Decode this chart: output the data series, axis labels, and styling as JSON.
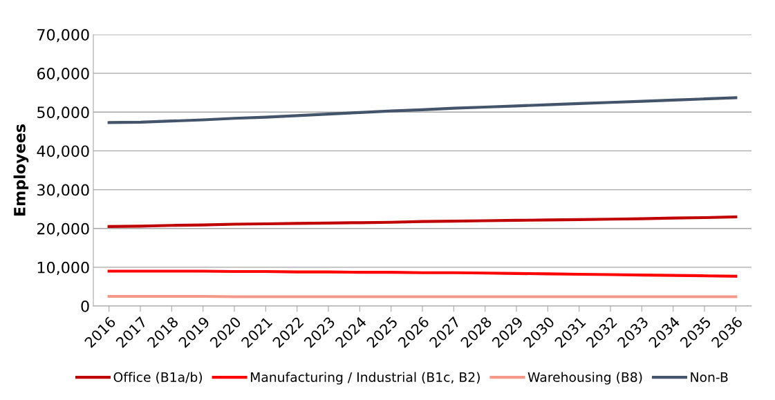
{
  "chart_data": {
    "type": "line",
    "ylabel": "Employees",
    "categories": [
      "2016",
      "2017",
      "2018",
      "2019",
      "2020",
      "2021",
      "2022",
      "2023",
      "2024",
      "2025",
      "2026",
      "2027",
      "2028",
      "2029",
      "2030",
      "2031",
      "2032",
      "2033",
      "2034",
      "2035",
      "2036"
    ],
    "series": [
      {
        "name": "Office (B1a/b)",
        "color": "#c00000",
        "values": [
          20500,
          20600,
          20800,
          20900,
          21100,
          21200,
          21300,
          21400,
          21500,
          21600,
          21800,
          21900,
          22000,
          22100,
          22200,
          22300,
          22400,
          22500,
          22700,
          22800,
          23000
        ]
      },
      {
        "name": "Manufacturing / Industrial (B1c, B2)",
        "color": "#ff0000",
        "values": [
          9000,
          9000,
          9000,
          9000,
          8900,
          8900,
          8800,
          8800,
          8700,
          8700,
          8600,
          8600,
          8500,
          8400,
          8300,
          8200,
          8100,
          8000,
          7900,
          7800,
          7700
        ]
      },
      {
        "name": "Warehousing (B8)",
        "color": "#f4998a",
        "values": [
          2500,
          2500,
          2500,
          2500,
          2400,
          2400,
          2400,
          2400,
          2400,
          2400,
          2400,
          2400,
          2400,
          2400,
          2400,
          2400,
          2400,
          2400,
          2400,
          2400,
          2400
        ]
      },
      {
        "name": "Non-B",
        "color": "#44546a",
        "values": [
          47300,
          47400,
          47700,
          48000,
          48400,
          48700,
          49100,
          49500,
          49900,
          50300,
          50600,
          51000,
          51300,
          51600,
          51900,
          52200,
          52500,
          52800,
          53100,
          53400,
          53700
        ]
      }
    ],
    "ylim": [
      0,
      70000
    ],
    "yticks": [
      {
        "value": 0,
        "label": "0"
      },
      {
        "value": 10000,
        "label": "10,000"
      },
      {
        "value": 20000,
        "label": "20,000"
      },
      {
        "value": 30000,
        "label": "30,000"
      },
      {
        "value": 40000,
        "label": "40,000"
      },
      {
        "value": 50000,
        "label": "50,000"
      },
      {
        "value": 60000,
        "label": "60,000"
      },
      {
        "value": 70000,
        "label": "70,000"
      }
    ],
    "grid": "y",
    "legend": "bottom",
    "marker": "none",
    "line_style": "solid"
  }
}
